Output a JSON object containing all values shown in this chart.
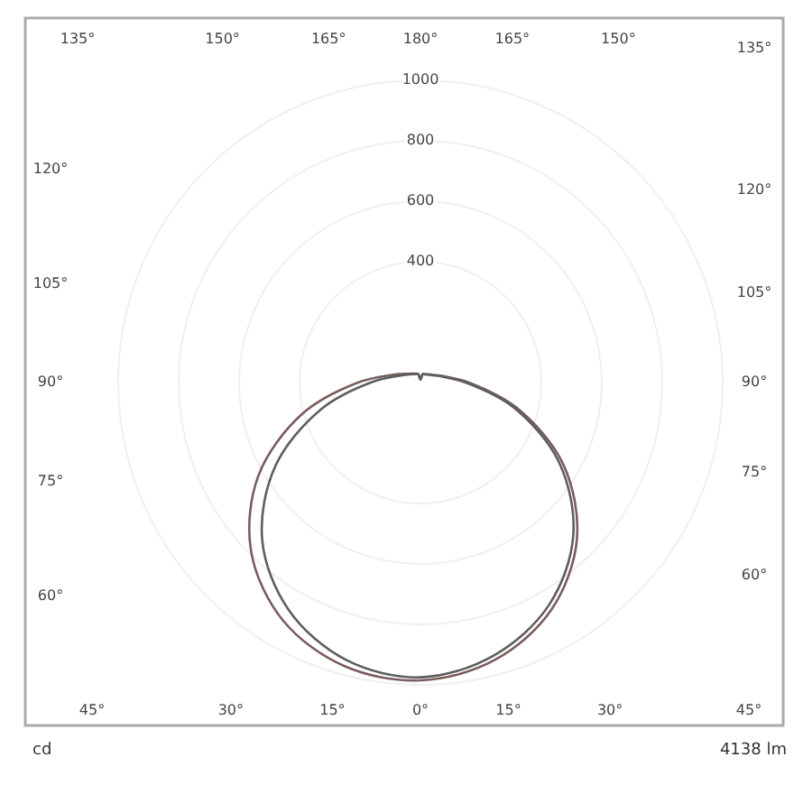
{
  "chart_data": {
    "type": "radar",
    "ylabel": "cd",
    "annotations": [
      "4138 lm"
    ],
    "categories": [
      "180°",
      "165°",
      "150°",
      "135°",
      "120°",
      "105°",
      "90°",
      "75°",
      "60°",
      "45°",
      "30°",
      "15°",
      "0°",
      "15°",
      "30°",
      "45°",
      "60°",
      "75°",
      "90°",
      "105°",
      "120°",
      "135°",
      "150°",
      "165°"
    ],
    "ylim": [
      0,
      1000
    ],
    "grid": true,
    "yticks": [
      400,
      600,
      800,
      1000
    ],
    "series": [
      {
        "color": "#7a5c5c",
        "values": [
          10,
          30,
          32,
          39,
          51,
          81,
          160,
          333,
          547,
          732,
          867,
          950,
          985,
          971,
          909,
          792,
          620,
          407,
          207,
          98,
          58,
          42,
          34,
          30
        ]
      },
      {
        "color": "#5e5e5e",
        "values": [
          10,
          29,
          31,
          37,
          48,
          76,
          150,
          320,
          530,
          715,
          850,
          935,
          975,
          950,
          870,
          740,
          555,
          340,
          165,
          82,
          52,
          39,
          32,
          29
        ]
      }
    ]
  }
}
